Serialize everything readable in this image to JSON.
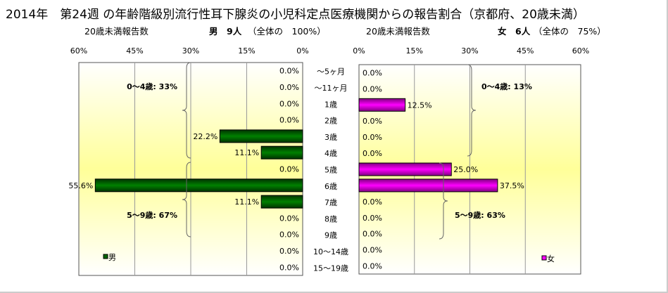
{
  "title": "2014年　第24週 の年齢階級別流行性耳下腺炎の小児科定点医療機関からの報告割合（京都府、20歳未満）",
  "male_header": {
    "label": "20歳未満報告数",
    "count": "男　9人",
    "share": "（全体の　100%）"
  },
  "female_header": {
    "label": "20歳未満報告数",
    "count": "女　6人",
    "share": "（全体の　75%）"
  },
  "chart_data": {
    "type": "bar",
    "orientation": "horizontal-butterfly",
    "categories": [
      "～5ヶ月",
      "～11ヶ月",
      "1歳",
      "2歳",
      "3歳",
      "4歳",
      "5歳",
      "6歳",
      "7歳",
      "8歳",
      "9歳",
      "10～14歳",
      "15～19歳"
    ],
    "series": [
      {
        "name": "男",
        "color": "#006400",
        "values": [
          0,
          0,
          0,
          0,
          22.2,
          11.1,
          0,
          55.6,
          11.1,
          0,
          0,
          0,
          0
        ],
        "labels": [
          "0.0%",
          "0.0%",
          "0.0%",
          "0.0%",
          "22.2%",
          "11.1%",
          "0.0%",
          "55.6%",
          "11.1%",
          "0.0%",
          "0.0%",
          "0.0%",
          "0.0%"
        ]
      },
      {
        "name": "女",
        "color": "#ff00ff",
        "values": [
          0,
          0,
          12.5,
          0,
          0,
          0,
          25.0,
          37.5,
          0,
          0,
          0,
          0,
          0
        ],
        "labels": [
          "0.0%",
          "0.0%",
          "12.5%",
          "0.0%",
          "0.0%",
          "0.0%",
          "25.0%",
          "37.5%",
          "0.0%",
          "0.0%",
          "0.0%",
          "0.0%",
          "0.0%"
        ]
      }
    ],
    "xlim": [
      0,
      60
    ],
    "ticks": [
      "0%",
      "15%",
      "30%",
      "45%",
      "60%"
    ],
    "tick_values": [
      0,
      15,
      30,
      45,
      60
    ],
    "annotations": {
      "male": [
        "0～4歳: 33%",
        "5～9歳: 67%"
      ],
      "female": [
        "0～4歳: 13%",
        "5～9歳: 63%"
      ]
    },
    "legend": {
      "male": "男",
      "female": "女"
    }
  }
}
